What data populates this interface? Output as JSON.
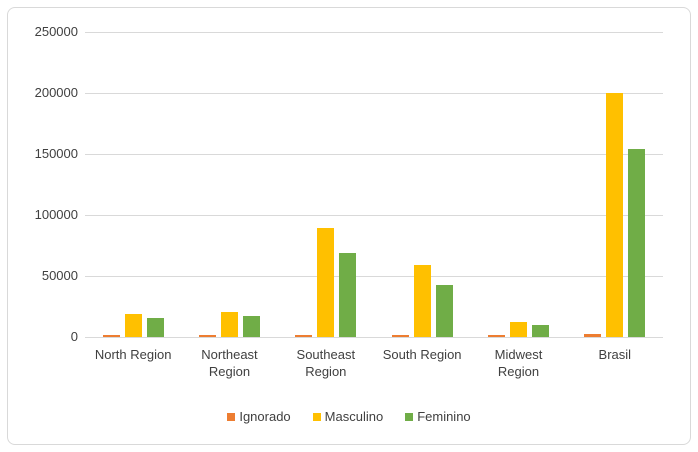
{
  "chart_data": {
    "type": "bar",
    "title": "",
    "xlabel": "",
    "ylabel": "",
    "categories": [
      "North Region",
      "Northeast Region",
      "Southeast Region",
      "South Region",
      "Midwest Region",
      "Brasil"
    ],
    "series": [
      {
        "name": "Ignorado",
        "color": "#ED7D31",
        "values": [
          1400,
          1400,
          1600,
          1900,
          1600,
          2500
        ]
      },
      {
        "name": "Masculino",
        "color": "#FFC000",
        "values": [
          19000,
          20500,
          89000,
          59000,
          12500,
          200000
        ]
      },
      {
        "name": "Feminino",
        "color": "#70AD47",
        "values": [
          15500,
          17000,
          68500,
          43000,
          9500,
          154000
        ]
      }
    ],
    "ylim": [
      0,
      250000
    ],
    "ytick_interval": 50000,
    "ytick_labels": [
      "0",
      "50000",
      "100000",
      "150000",
      "200000",
      "250000"
    ],
    "grid": true,
    "legend_position": "bottom"
  },
  "colors": {
    "background": "#FFFFFF",
    "frame_border": "#D9D9D9",
    "gridline": "#D9D9D9",
    "axis_text": "#404040",
    "series_ignorado": "#ED7D31",
    "series_masculino": "#FFC000",
    "series_feminino": "#70AD47"
  }
}
